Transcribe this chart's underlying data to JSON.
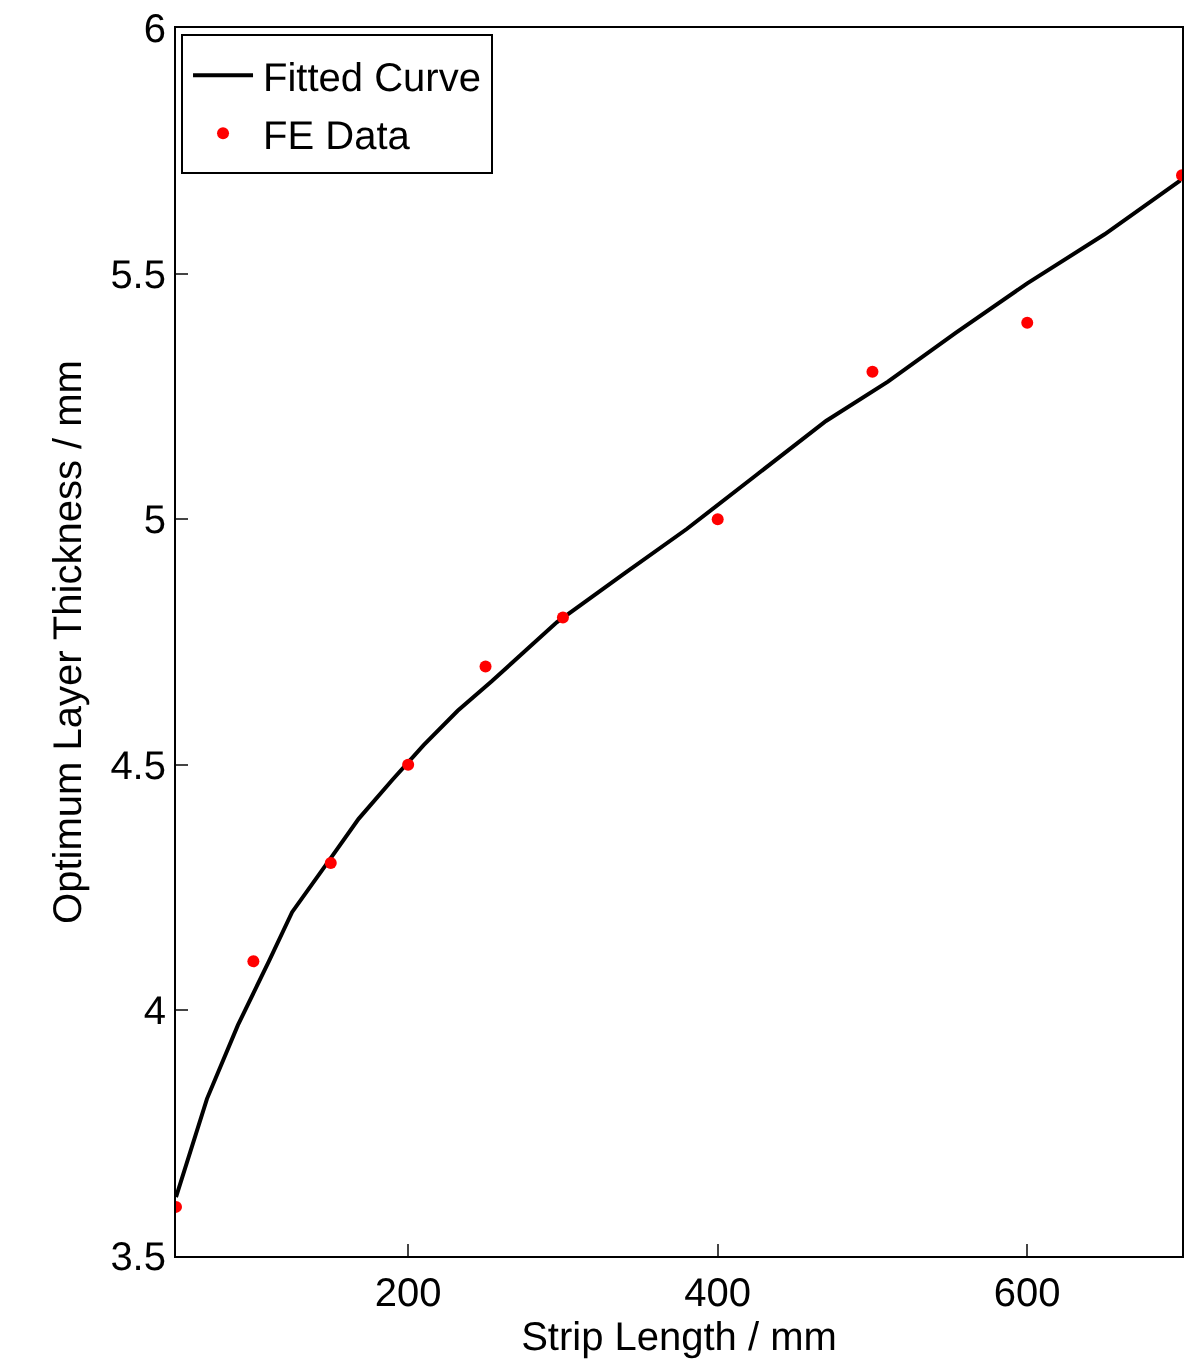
{
  "chart_data": {
    "type": "line",
    "xlabel": "Strip Length / mm",
    "ylabel": "Optimum Layer Thickness / mm",
    "xlim": [
      50,
      700
    ],
    "ylim": [
      3.5,
      6
    ],
    "xticks": [
      200,
      400,
      600
    ],
    "yticks": [
      3.5,
      4,
      4.5,
      5,
      5.5,
      6
    ],
    "legend": "top left",
    "series": [
      {
        "name": "Fitted Curve",
        "color": "#000000",
        "marker": "none",
        "line_style": "solid",
        "x": [
          50,
          70,
          90,
          110,
          125,
          150,
          168,
          190,
          210,
          232,
          254,
          275,
          296,
          340,
          380,
          425,
          470,
          510,
          554,
          600,
          650,
          699
        ],
        "values": [
          3.62,
          3.82,
          3.97,
          4.1,
          4.2,
          4.31,
          4.39,
          4.47,
          4.54,
          4.61,
          4.67,
          4.73,
          4.79,
          4.89,
          4.98,
          5.09,
          5.2,
          5.28,
          5.38,
          5.48,
          5.58,
          5.69
        ]
      },
      {
        "name": "FE Data",
        "type": "scatter",
        "color": "#ff0000",
        "marker": "circle",
        "x": [
          50,
          100,
          150,
          200,
          250,
          300,
          400,
          500,
          600,
          700
        ],
        "values": [
          3.6,
          4.1,
          4.3,
          4.5,
          4.7,
          4.8,
          5.0,
          5.3,
          5.4,
          5.7
        ]
      }
    ]
  }
}
